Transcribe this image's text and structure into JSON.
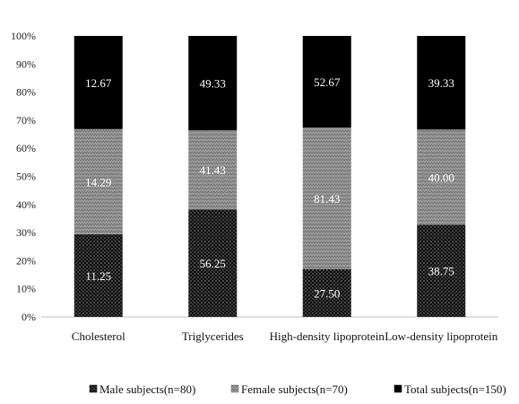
{
  "chart_data": {
    "type": "bar",
    "stacked": true,
    "normalized": true,
    "categories": [
      "Cholesterol",
      "Triglycerides",
      "High-density lipoprotein",
      "Low-density lipoprotein"
    ],
    "series": [
      {
        "name": "Male subjects(n=80)",
        "values": [
          11.25,
          56.25,
          27.5,
          38.75
        ],
        "labels": [
          "11.25",
          "56.25",
          "27.50",
          "38.75"
        ],
        "fill": "dots",
        "color": "#111111"
      },
      {
        "name": "Female subjects(n=70)",
        "values": [
          14.29,
          41.43,
          81.43,
          40.0
        ],
        "labels": [
          "14.29",
          "41.43",
          "81.43",
          "40.00"
        ],
        "fill": "zigzag",
        "color": "#8c8c8c"
      },
      {
        "name": "Total subjects(n=150)",
        "values": [
          12.67,
          49.33,
          52.67,
          39.33
        ],
        "labels": [
          "12.67",
          "49.33",
          "52.67",
          "39.33"
        ],
        "fill": "solid",
        "color": "#000000"
      }
    ],
    "yticks": [
      "0%",
      "10%",
      "20%",
      "30%",
      "40%",
      "50%",
      "60%",
      "70%",
      "80%",
      "90%",
      "100%"
    ],
    "ylim": [
      0,
      100
    ],
    "grid": false,
    "legend": "bottom",
    "title": "",
    "xlabel": "",
    "ylabel": ""
  }
}
